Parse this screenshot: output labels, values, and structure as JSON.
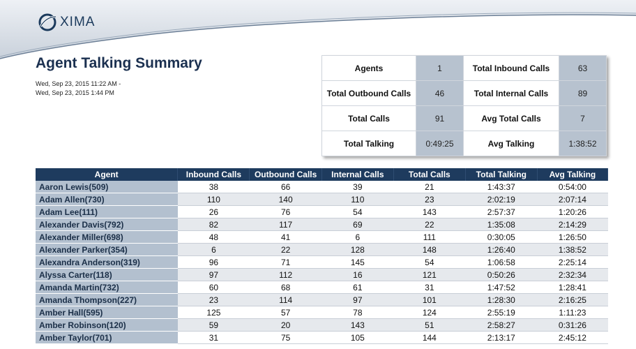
{
  "brand": {
    "logo_text": "XIMA",
    "accent": "#1e3b5e"
  },
  "report": {
    "title": "Agent Talking Summary",
    "date_from": "Wed, Sep 23, 2015 11:22 AM -",
    "date_to": "Wed, Sep 23, 2015 1:44 PM"
  },
  "summary": {
    "agents_label": "Agents",
    "agents_value": "1",
    "total_inbound_label": "Total Inbound Calls",
    "total_inbound_value": "63",
    "total_outbound_label": "Total Outbound Calls",
    "total_outbound_value": "46",
    "total_internal_label": "Total Internal Calls",
    "total_internal_value": "89",
    "total_calls_label": "Total Calls",
    "total_calls_value": "91",
    "avg_total_calls_label": "Avg Total Calls",
    "avg_total_calls_value": "7",
    "total_talking_label": "Total Talking",
    "total_talking_value": "0:49:25",
    "avg_talking_label": "Avg Talking",
    "avg_talking_value": "1:38:52"
  },
  "table": {
    "columns": [
      "Agent",
      "Inbound Calls",
      "Outbound Calls",
      "Internal Calls",
      "Total Calls",
      "Total Talking",
      "Avg Talking"
    ],
    "rows": [
      [
        "Aaron Lewis(509)",
        "38",
        "66",
        "39",
        "21",
        "1:43:37",
        "0:54:00"
      ],
      [
        "Adam Allen(730)",
        "110",
        "140",
        "110",
        "23",
        "2:02:19",
        "2:07:14"
      ],
      [
        "Adam Lee(111)",
        "26",
        "76",
        "54",
        "143",
        "2:57:37",
        "1:20:26"
      ],
      [
        "Alexander Davis(792)",
        "82",
        "117",
        "69",
        "22",
        "1:35:08",
        "2:14:29"
      ],
      [
        "Alexander Miller(698)",
        "48",
        "41",
        "6",
        "111",
        "0:30:05",
        "1:26:50"
      ],
      [
        "Alexander Parker(354)",
        "6",
        "22",
        "128",
        "148",
        "1:26:40",
        "1:38:52"
      ],
      [
        "Alexandra Anderson(319)",
        "96",
        "71",
        "145",
        "54",
        "1:06:58",
        "2:25:14"
      ],
      [
        "Alyssa Carter(118)",
        "97",
        "112",
        "16",
        "121",
        "0:50:26",
        "2:32:34"
      ],
      [
        "Amanda Martin(732)",
        "60",
        "68",
        "61",
        "31",
        "1:47:52",
        "1:28:41"
      ],
      [
        "Amanda Thompson(227)",
        "23",
        "114",
        "97",
        "101",
        "1:28:30",
        "2:16:25"
      ],
      [
        "Amber Hall(595)",
        "125",
        "57",
        "78",
        "124",
        "2:55:19",
        "1:11:23"
      ],
      [
        "Amber Robinson(120)",
        "59",
        "20",
        "143",
        "51",
        "2:58:27",
        "0:31:26"
      ],
      [
        "Amber Taylor(701)",
        "31",
        "75",
        "105",
        "144",
        "2:13:17",
        "2:45:12"
      ]
    ]
  }
}
